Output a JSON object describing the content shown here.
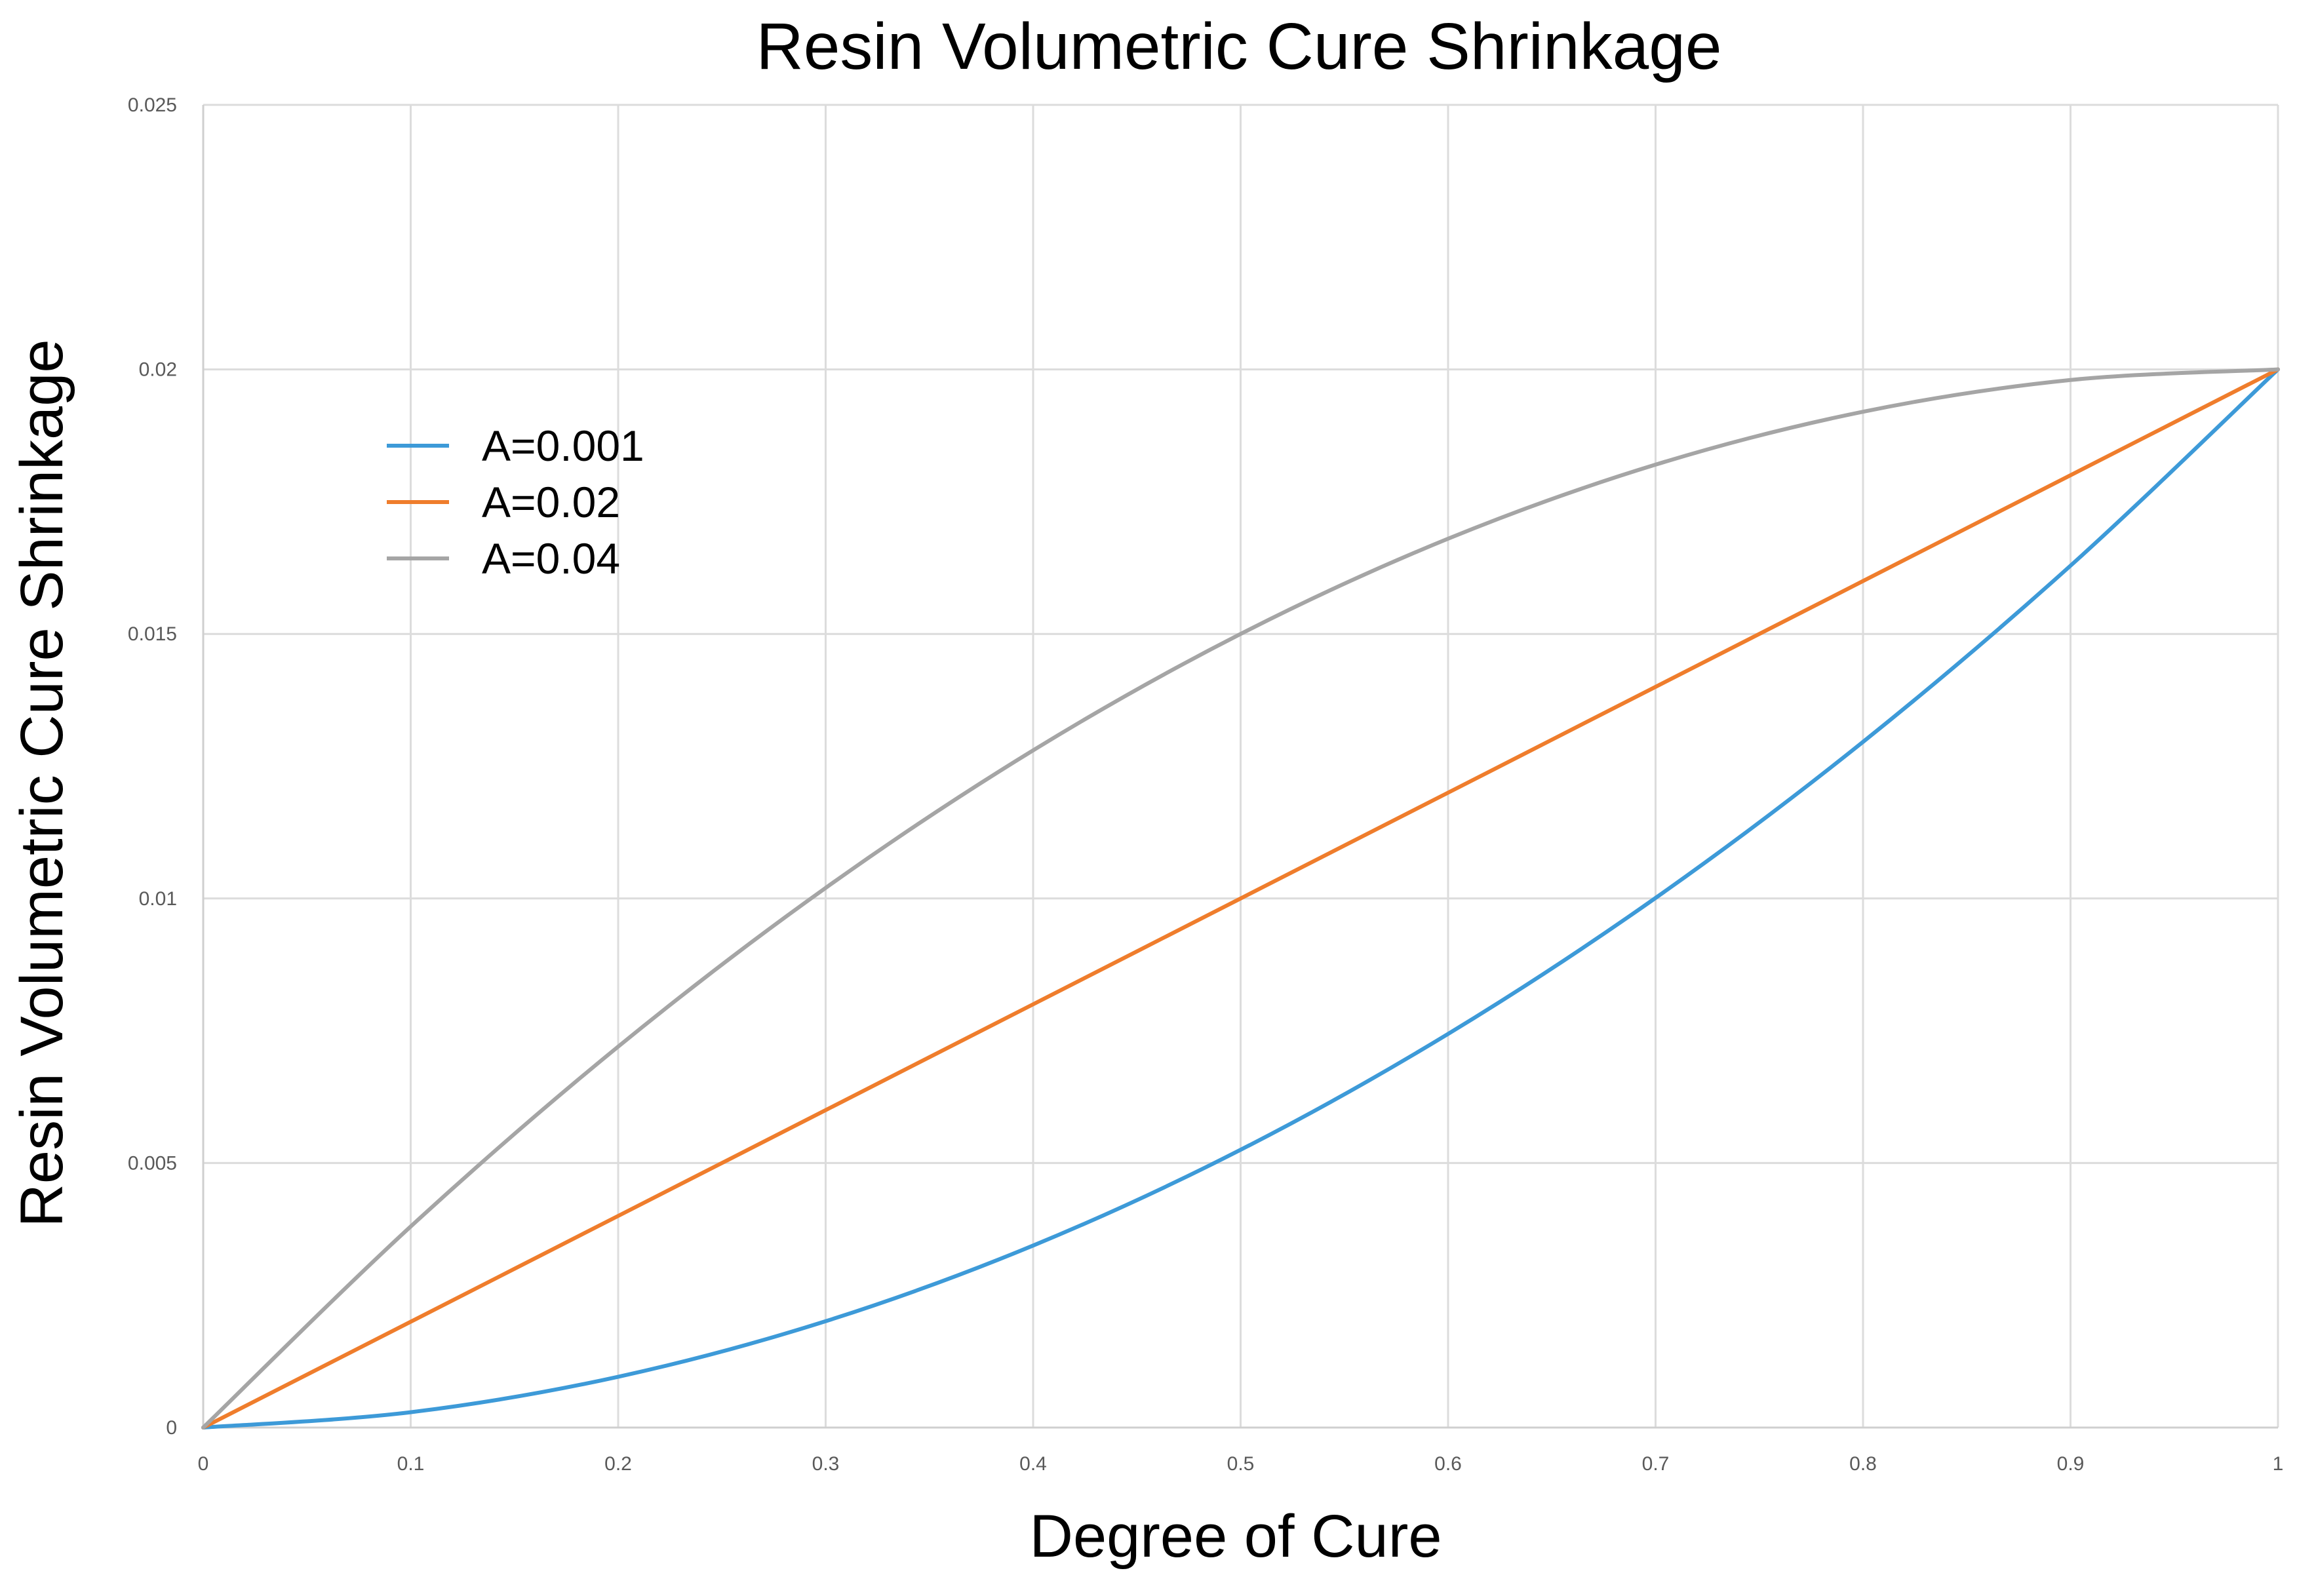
{
  "chart_data": {
    "type": "line",
    "title": "Resin Volumetric Cure Shrinkage",
    "xlabel": "Degree of Cure",
    "ylabel": "Resin Volumetric Cure Shrinkage",
    "xlim": [
      0,
      1
    ],
    "ylim": [
      0,
      0.025
    ],
    "grid": true,
    "legend_position": "upper-left",
    "x_ticks": [
      "0",
      "0.1",
      "0.2",
      "0.3",
      "0.4",
      "0.5",
      "0.6",
      "0.7",
      "0.8",
      "0.9",
      "1"
    ],
    "x_tick_values": [
      0,
      0.1,
      0.2,
      0.3,
      0.4,
      0.5,
      0.6,
      0.7,
      0.8,
      0.9,
      1
    ],
    "y_ticks": [
      "0",
      "0.005",
      "0.01",
      "0.015",
      "0.02",
      "0.025"
    ],
    "y_tick_values": [
      0,
      0.005,
      0.01,
      0.015,
      0.02,
      0.025
    ],
    "x": [
      0,
      0.1,
      0.2,
      0.3,
      0.4,
      0.5,
      0.6,
      0.7,
      0.8,
      0.9,
      1.0
    ],
    "series": [
      {
        "name": "A=0.001",
        "color": "#3d9ad8",
        "values": [
          0,
          0.00029,
          0.00096,
          0.00201,
          0.00344,
          0.00525,
          0.00744,
          0.01001,
          0.01296,
          0.01629,
          0.02
        ]
      },
      {
        "name": "A=0.02",
        "color": "#ef7d2c",
        "values": [
          0,
          0.002,
          0.004,
          0.006,
          0.008,
          0.01,
          0.012,
          0.014,
          0.016,
          0.018,
          0.02
        ]
      },
      {
        "name": "A=0.04",
        "color": "#a5a5a5",
        "values": [
          0,
          0.0038,
          0.0072,
          0.0102,
          0.0128,
          0.015,
          0.0168,
          0.0182,
          0.0192,
          0.0198,
          0.02
        ]
      }
    ]
  }
}
